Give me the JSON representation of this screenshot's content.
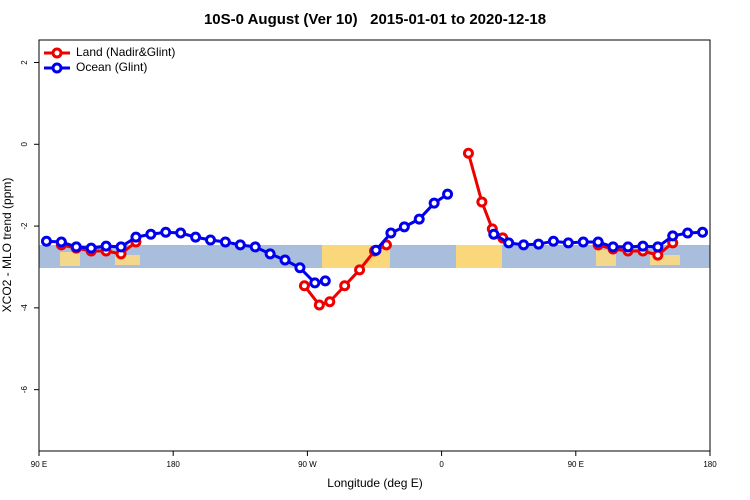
{
  "chart_data": {
    "type": "line",
    "title": "10S-0 August (Ver 10)   2015-01-01 to 2020-12-18",
    "x_label": "Longitude (deg E)",
    "y_label": "XCO2 - MLO trend (ppm)",
    "xlim": [
      90,
      540
    ],
    "ylim": [
      -7.5,
      2.55
    ],
    "xticks": [
      {
        "value": 90,
        "label": "90 E"
      },
      180,
      {
        "value": 270,
        "label": "90 W"
      },
      {
        "value": 360,
        "label": "0"
      },
      {
        "value": 450,
        "label": "90 E"
      },
      {
        "value": 540,
        "label": "180"
      }
    ],
    "yticks": [
      2,
      0,
      -2,
      -4,
      -6
    ],
    "legend": "top-left",
    "series": [
      {
        "name": "Land (Nadir&Glint)",
        "color": "#ee0000",
        "x": [
          105,
          115,
          125,
          135,
          145,
          155,
          200,
          268,
          278,
          285,
          295,
          305,
          315,
          323,
          350,
          378,
          387,
          394,
          401,
          430,
          465,
          475,
          485,
          495,
          505,
          515
        ],
        "values": [
          -2.46,
          -2.54,
          -2.61,
          -2.61,
          -2.68,
          -2.39,
          null,
          -3.46,
          -3.93,
          -3.85,
          -3.46,
          -3.07,
          -2.61,
          -2.46,
          null,
          -0.22,
          -1.41,
          -2.07,
          -2.29,
          null,
          -2.46,
          -2.56,
          -2.61,
          -2.61,
          -2.71,
          -2.41
        ]
      },
      {
        "name": "Ocean (Glint)",
        "color": "#0000ee",
        "x": [
          95,
          105,
          115,
          125,
          135,
          145,
          155,
          165,
          175,
          185,
          195,
          205,
          215,
          225,
          235,
          245,
          255,
          265,
          275,
          282,
          300,
          316,
          326,
          335,
          345,
          355,
          364,
          380,
          395,
          405,
          415,
          425,
          435,
          445,
          455,
          465,
          475,
          485,
          495,
          505,
          515,
          525,
          535
        ],
        "values": [
          -2.37,
          -2.39,
          -2.51,
          -2.54,
          -2.49,
          -2.51,
          -2.27,
          -2.2,
          -2.15,
          -2.17,
          -2.27,
          -2.34,
          -2.39,
          -2.46,
          -2.51,
          -2.68,
          -2.83,
          -3.02,
          -3.39,
          -3.34,
          null,
          -2.59,
          -2.17,
          -2.02,
          -1.83,
          -1.44,
          -1.22,
          null,
          -2.2,
          -2.41,
          -2.46,
          -2.44,
          -2.37,
          -2.41,
          -2.39,
          -2.39,
          -2.51,
          -2.51,
          -2.49,
          -2.51,
          -2.24,
          -2.17,
          -2.15
        ]
      }
    ]
  }
}
